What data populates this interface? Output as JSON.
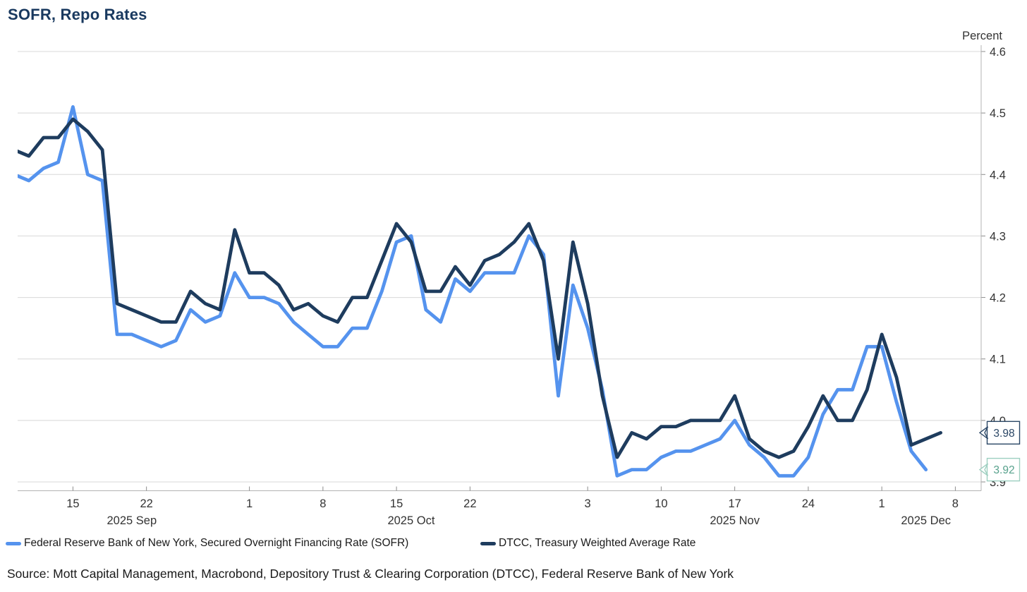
{
  "title": "SOFR, Repo Rates",
  "y_axis": {
    "unit_label": "Percent",
    "tick_labels": [
      "4.6",
      "4.5",
      "4.4",
      "4.3",
      "4.2",
      "4.1",
      "4.0",
      "3.9"
    ],
    "min": 3.9,
    "max": 4.6
  },
  "x_axis": {
    "ticks": [
      {
        "label": "15",
        "date": "2025-09-15"
      },
      {
        "label": "22",
        "date": "2025-09-22"
      },
      {
        "label": "1",
        "date": "2025-10-01"
      },
      {
        "label": "8",
        "date": "2025-10-08"
      },
      {
        "label": "15",
        "date": "2025-10-15"
      },
      {
        "label": "22",
        "date": "2025-10-22"
      },
      {
        "label": "3",
        "date": "2025-11-03"
      },
      {
        "label": "10",
        "date": "2025-11-10"
      },
      {
        "label": "17",
        "date": "2025-11-17"
      },
      {
        "label": "24",
        "date": "2025-11-24"
      },
      {
        "label": "1",
        "date": "2025-12-01"
      },
      {
        "label": "8",
        "date": "2025-12-08"
      }
    ],
    "months": [
      {
        "label": "2025 Sep",
        "anchor_date": "2025-09-19"
      },
      {
        "label": "2025 Oct",
        "anchor_date": "2025-10-16"
      },
      {
        "label": "2025 Nov",
        "anchor_date": "2025-11-17"
      },
      {
        "label": "2025 Dec",
        "anchor_date": "2025-12-04"
      }
    ]
  },
  "legend": {
    "items": [
      {
        "label": "Federal Reserve Bank of New York, Secured Overnight Financing Rate (SOFR)",
        "color": "#5593ee"
      },
      {
        "label": "DTCC, Treasury Weighted Average Rate",
        "color": "#1e3c5e"
      }
    ]
  },
  "callouts": [
    {
      "label": "3.98",
      "value": 3.98,
      "text_color": "#2b4766",
      "border_color": "#2b4766"
    },
    {
      "label": "3.92",
      "value": 3.92,
      "text_color": "#57a18c",
      "border_color": "#9dcfc0"
    }
  ],
  "colors": {
    "sofr_line": "#5593ee",
    "dtcc_line": "#1e3c5e",
    "gridline": "#d8d8d8",
    "axis_line": "#b3b3b3",
    "tick_mark": "#8c8c8c",
    "tick_text": "#333333",
    "title_text": "#19395f"
  },
  "source": "Source: Mott Capital Management, Macrobond, Depository Trust & Clearing Corporation (DTCC), Federal Reserve Bank of New York",
  "chart_data": {
    "type": "line",
    "title": "SOFR, Repo Rates",
    "ylabel": "Percent",
    "ylim": [
      3.9,
      4.6
    ],
    "grid": "horizontal",
    "legend_position": "bottom",
    "x": [
      "2025-09-09",
      "2025-09-10",
      "2025-09-11",
      "2025-09-12",
      "2025-09-15",
      "2025-09-16",
      "2025-09-17",
      "2025-09-18",
      "2025-09-19",
      "2025-09-22",
      "2025-09-23",
      "2025-09-24",
      "2025-09-25",
      "2025-09-26",
      "2025-09-29",
      "2025-09-30",
      "2025-10-01",
      "2025-10-02",
      "2025-10-03",
      "2025-10-06",
      "2025-10-07",
      "2025-10-08",
      "2025-10-09",
      "2025-10-10",
      "2025-10-13",
      "2025-10-14",
      "2025-10-15",
      "2025-10-16",
      "2025-10-17",
      "2025-10-20",
      "2025-10-21",
      "2025-10-22",
      "2025-10-23",
      "2025-10-24",
      "2025-10-27",
      "2025-10-28",
      "2025-10-29",
      "2025-10-30",
      "2025-10-31",
      "2025-11-03",
      "2025-11-04",
      "2025-11-05",
      "2025-11-06",
      "2025-11-07",
      "2025-11-10",
      "2025-11-11",
      "2025-11-12",
      "2025-11-13",
      "2025-11-14",
      "2025-11-17",
      "2025-11-18",
      "2025-11-19",
      "2025-11-20",
      "2025-11-21",
      "2025-11-24",
      "2025-11-25",
      "2025-11-26",
      "2025-11-27",
      "2025-11-28",
      "2025-12-01",
      "2025-12-02",
      "2025-12-03",
      "2025-12-04",
      "2025-12-05",
      "2025-12-08"
    ],
    "series": [
      {
        "name": "Federal Reserve Bank of New York, Secured Overnight Financing Rate (SOFR)",
        "color": "#5593ee",
        "last_value": 3.92,
        "values": [
          4.4,
          4.39,
          4.41,
          4.42,
          4.51,
          4.4,
          4.39,
          4.14,
          4.14,
          4.13,
          4.12,
          4.13,
          4.18,
          4.16,
          4.17,
          4.24,
          4.2,
          4.2,
          4.19,
          4.16,
          4.14,
          4.12,
          4.12,
          4.15,
          4.15,
          4.21,
          4.29,
          4.3,
          4.18,
          4.16,
          4.23,
          4.21,
          4.24,
          4.24,
          4.24,
          4.3,
          4.27,
          4.04,
          4.22,
          4.15,
          4.05,
          3.91,
          3.92,
          3.92,
          3.94,
          3.95,
          3.95,
          3.96,
          3.97,
          4.0,
          3.96,
          3.94,
          3.91,
          3.91,
          3.94,
          4.01,
          4.05,
          4.05,
          4.12,
          4.12,
          4.03,
          3.95,
          3.92,
          null,
          null
        ]
      },
      {
        "name": "DTCC, Treasury Weighted Average Rate",
        "color": "#1e3c5e",
        "last_value": 3.98,
        "values": [
          4.44,
          4.43,
          4.46,
          4.46,
          4.49,
          4.47,
          4.44,
          4.19,
          4.18,
          4.17,
          4.16,
          4.16,
          4.21,
          4.19,
          4.18,
          4.31,
          4.24,
          4.24,
          4.22,
          4.18,
          4.19,
          4.17,
          4.16,
          4.2,
          4.2,
          4.26,
          4.32,
          4.29,
          4.21,
          4.21,
          4.25,
          4.22,
          4.26,
          4.27,
          4.29,
          4.32,
          4.26,
          4.1,
          4.29,
          4.19,
          4.04,
          3.94,
          3.98,
          3.97,
          3.99,
          3.99,
          4.0,
          4.0,
          4.0,
          4.04,
          3.97,
          3.95,
          3.94,
          3.95,
          3.99,
          4.04,
          4.0,
          4.0,
          4.05,
          4.14,
          4.07,
          3.96,
          3.97,
          3.98,
          null
        ]
      }
    ]
  }
}
